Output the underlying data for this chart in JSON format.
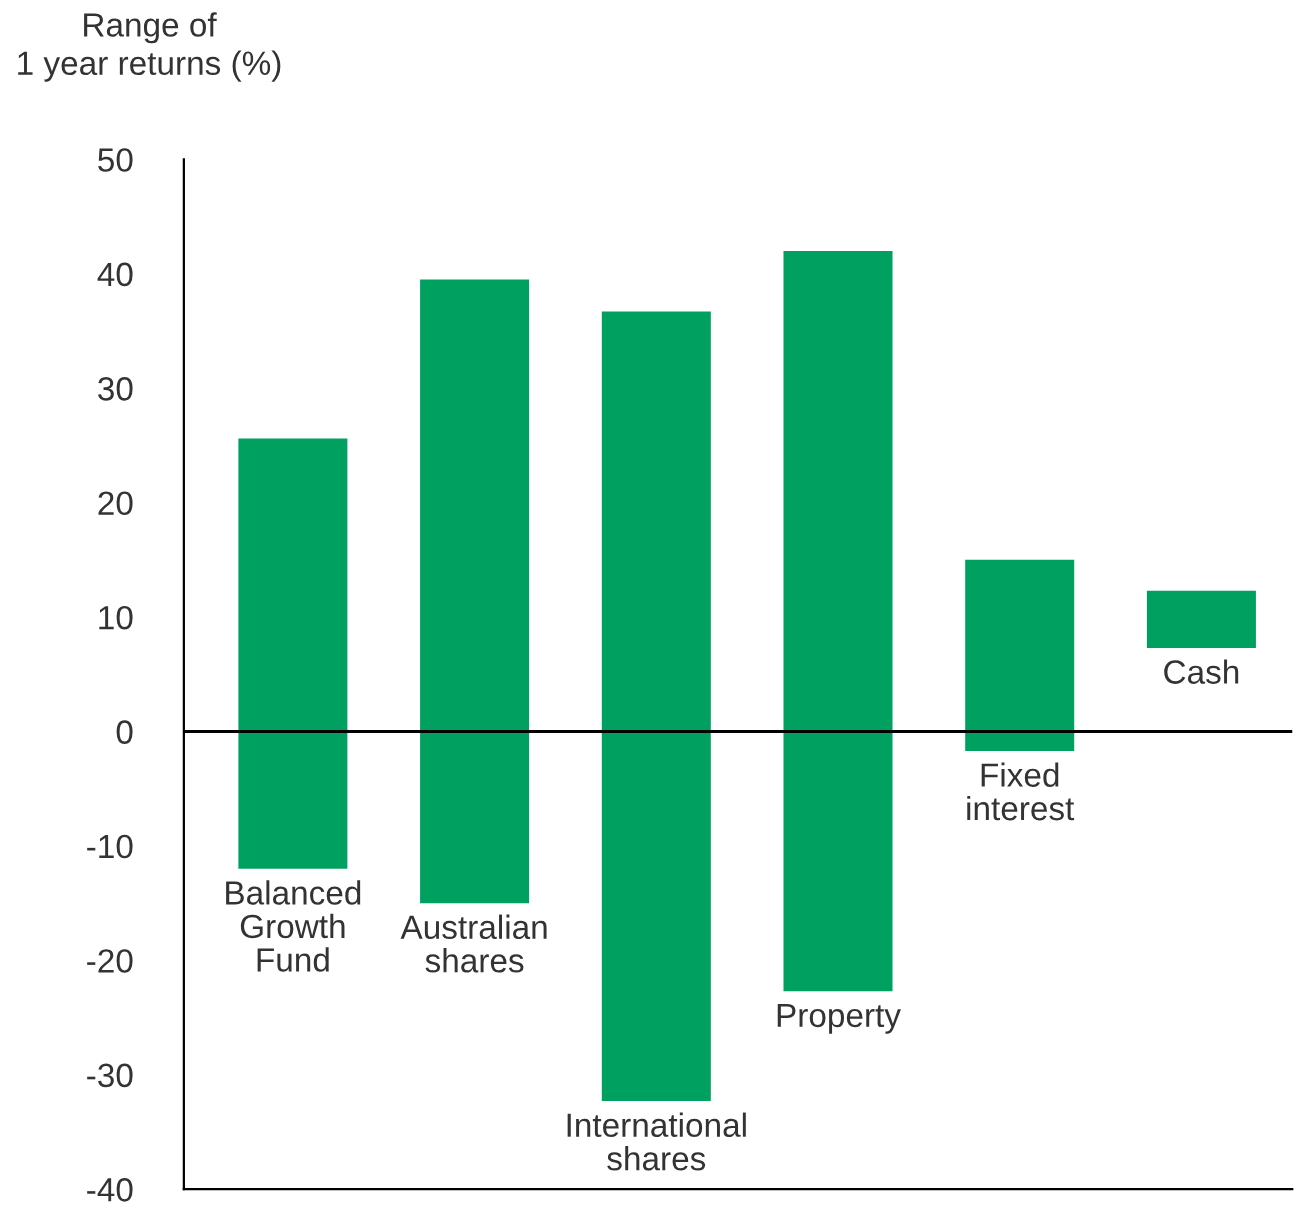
{
  "chart_data": {
    "type": "bar",
    "ylabel": "Range of\n1 year returns (%)",
    "categories": [
      "Balanced\nGrowth\nFund",
      "Australian\nshares",
      "International\nshares",
      "Property",
      "Fixed\ninterest",
      "Cash"
    ],
    "base": [
      -12,
      -15,
      -32.3,
      -22.7,
      -1.7,
      7.3
    ],
    "values": [
      37.6,
      54.5,
      69,
      64.7,
      16.7,
      5
    ],
    "color": "#00a160",
    "ylim": [
      -40,
      50
    ],
    "yticks": [
      -40,
      -30,
      -20,
      -10,
      0,
      10,
      20,
      30,
      40,
      50
    ],
    "ref_lines": [
      {
        "axis": "y",
        "value": 0,
        "color": "#000000"
      }
    ],
    "grid": false,
    "legend": false
  }
}
